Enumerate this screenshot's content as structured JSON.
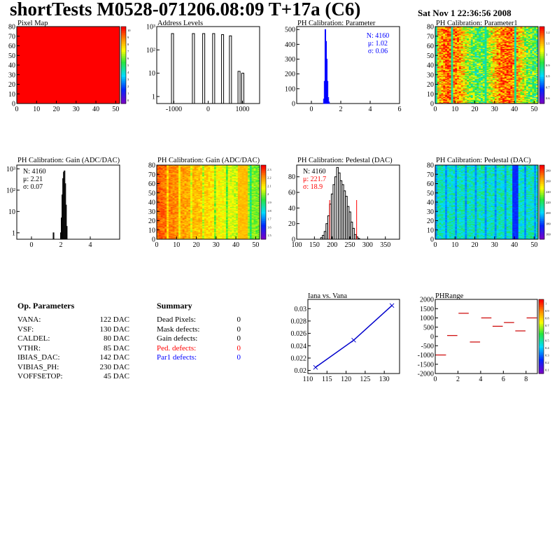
{
  "header": {
    "title": "shortTests M0528-071206.08:09 T+17a (C6)",
    "date": "Sat Nov  1 22:36:56 2008"
  },
  "colors": {
    "text": "#000000",
    "stats_blue": "#0000ff",
    "stats_red": "#ff0000",
    "pixelmap_fill": "#ff0000",
    "line_series": "#0000cc",
    "phrange_segments": "#cc0000"
  },
  "op_parameters": {
    "title": "Op. Parameters",
    "rows": [
      {
        "name": "VANA:",
        "value": "122 DAC"
      },
      {
        "name": "VSF:",
        "value": "130 DAC"
      },
      {
        "name": "CALDEL:",
        "value": "80 DAC"
      },
      {
        "name": "VTHR:",
        "value": "85 DAC"
      },
      {
        "name": "IBIAS_DAC:",
        "value": "142 DAC"
      },
      {
        "name": "VIBIAS_PH:",
        "value": "230 DAC"
      },
      {
        "name": "VOFFSETOP:",
        "value": "45 DAC"
      }
    ]
  },
  "summary": {
    "title": "Summary",
    "rows": [
      {
        "name": "Dead Pixels:",
        "value": "0",
        "color": "#000000"
      },
      {
        "name": "Mask defects:",
        "value": "0",
        "color": "#000000"
      },
      {
        "name": "Gain defects:",
        "value": "0",
        "color": "#000000"
      },
      {
        "name": "Ped. defects:",
        "value": "0",
        "color": "#ff0000"
      },
      {
        "name": "Par1 defects:",
        "value": "0",
        "color": "#0000ff"
      }
    ]
  },
  "chart_data": [
    {
      "id": "pixel-map",
      "type": "heatmap",
      "title": "Pixel Map",
      "xlim": [
        0,
        52
      ],
      "ylim": [
        0,
        80
      ],
      "xticks": [
        "0",
        "10",
        "20",
        "30",
        "40",
        "50"
      ],
      "yticks": [
        "0",
        "10",
        "20",
        "30",
        "40",
        "50",
        "60",
        "70",
        "80"
      ],
      "z_uniform": 10,
      "zlim": [
        0,
        10
      ],
      "palette_labels": [
        "0",
        "1",
        "2",
        "3",
        "4",
        "5",
        "6",
        "7",
        "8",
        "9",
        "10"
      ]
    },
    {
      "id": "address-levels",
      "type": "bar",
      "title": "Address Levels",
      "log_y": true,
      "xlim": [
        -1500,
        1500
      ],
      "ylim": [
        0.5,
        1000
      ],
      "xticks": [
        "-1000",
        "0",
        "1000"
      ],
      "yticks": [
        "1",
        "10",
        "10²",
        "10³"
      ],
      "peaks": [
        {
          "x": -1040,
          "y": 500
        },
        {
          "x": -430,
          "y": 500
        },
        {
          "x": -130,
          "y": 500
        },
        {
          "x": 160,
          "y": 500
        },
        {
          "x": 420,
          "y": 450
        },
        {
          "x": 650,
          "y": 400
        },
        {
          "x": 900,
          "y": 12
        },
        {
          "x": 1010,
          "y": 10
        }
      ]
    },
    {
      "id": "ph-cal-parameter",
      "type": "bar",
      "title": "PH Calibration: Parameter",
      "xlim": [
        -1,
        6
      ],
      "ylim": [
        0,
        520
      ],
      "xticks": [
        "0",
        "2",
        "4",
        "6"
      ],
      "yticks": [
        "0",
        "100",
        "200",
        "300",
        "400",
        "500"
      ],
      "stats": [
        {
          "text": "N: 4160",
          "color": "#0000ff"
        },
        {
          "text": "μ: 1.02",
          "color": "#0000ff"
        },
        {
          "text": "σ: 0.06",
          "color": "#0000ff"
        }
      ],
      "x": [
        0.85,
        0.9,
        0.95,
        1.0,
        1.05,
        1.1,
        1.15,
        1.2
      ],
      "values": [
        30,
        150,
        500,
        420,
        300,
        150,
        40,
        10
      ]
    },
    {
      "id": "ph-cal-parameter1",
      "type": "heatmap",
      "title": "PH Calibration: Parameter1",
      "xlim": [
        0,
        52
      ],
      "ylim": [
        0,
        80
      ],
      "xticks": [
        "0",
        "10",
        "20",
        "30",
        "40",
        "50"
      ],
      "yticks": [
        "0",
        "10",
        "20",
        "30",
        "40",
        "50",
        "60",
        "70",
        "80"
      ],
      "palette_labels": [
        "0.6",
        "0.7",
        "0.8",
        "0.9",
        "1",
        "1.1",
        "1.2"
      ]
    },
    {
      "id": "ph-cal-gain-1d",
      "type": "bar",
      "title": "PH Calibration: Gain (ADC/DAC)",
      "log_y": true,
      "xlim": [
        -1,
        6
      ],
      "ylim": [
        0.5,
        1500
      ],
      "xticks": [
        "0",
        "2",
        "4"
      ],
      "yticks": [
        "1",
        "10",
        "10²",
        "10³"
      ],
      "stats": [
        {
          "text": "N: 4160",
          "color": "#000000"
        },
        {
          "text": "μ: 2.21",
          "color": "#000000"
        },
        {
          "text": "σ: 0.07",
          "color": "#000000"
        }
      ],
      "x": [
        1.5,
        2.0,
        2.05,
        2.1,
        2.15,
        2.2,
        2.25,
        2.3,
        2.35,
        2.4
      ],
      "values": [
        1,
        1,
        5,
        60,
        350,
        700,
        800,
        200,
        20,
        2
      ]
    },
    {
      "id": "ph-cal-gain-map",
      "type": "heatmap",
      "title": "PH Calibration: Gain (ADC/DAC)",
      "xlim": [
        0,
        52
      ],
      "ylim": [
        0,
        80
      ],
      "xticks": [
        "0",
        "10",
        "20",
        "30",
        "40",
        "50"
      ],
      "yticks": [
        "0",
        "10",
        "20",
        "30",
        "40",
        "50",
        "60",
        "70",
        "80"
      ],
      "palette_labels": [
        "1.5",
        "1.6",
        "1.7",
        "1.8",
        "1.9",
        "2",
        "2.1",
        "2.2",
        "2.3"
      ]
    },
    {
      "id": "ph-cal-pedestal-1d",
      "type": "bar",
      "title": "PH Calibration: Pedestal (DAC)",
      "xlim": [
        100,
        390
      ],
      "ylim": [
        0,
        95
      ],
      "xticks": [
        "100",
        "150",
        "200",
        "250",
        "300",
        "350"
      ],
      "yticks": [
        "0",
        "20",
        "40",
        "60",
        "80"
      ],
      "stats": [
        {
          "text": "N: 4160",
          "color": "#000000"
        },
        {
          "text": "μ: 221.7",
          "color": "#ff0000"
        },
        {
          "text": "σ: 18.9",
          "color": "#ff0000"
        }
      ],
      "x": [
        170,
        175,
        180,
        185,
        190,
        195,
        200,
        205,
        210,
        215,
        220,
        225,
        230,
        235,
        240,
        245,
        250,
        255,
        260,
        265,
        270,
        275
      ],
      "values": [
        2,
        5,
        10,
        20,
        30,
        45,
        58,
        70,
        80,
        92,
        85,
        75,
        70,
        62,
        55,
        42,
        35,
        22,
        14,
        6,
        3,
        1
      ],
      "cut_lines": [
        193,
        269
      ]
    },
    {
      "id": "ph-cal-pedestal-map",
      "type": "heatmap",
      "title": "PH Calibration: Pedestal (DAC)",
      "xlim": [
        0,
        52
      ],
      "ylim": [
        0,
        80
      ],
      "xticks": [
        "0",
        "10",
        "20",
        "30",
        "40",
        "50"
      ],
      "yticks": [
        "0",
        "10",
        "20",
        "30",
        "40",
        "50",
        "60",
        "70",
        "80"
      ],
      "palette_labels": [
        "160",
        "180",
        "200",
        "220",
        "240",
        "260",
        "280"
      ]
    },
    {
      "id": "iana-vs-vana",
      "type": "line",
      "title": "Iana vs. Vana",
      "xlim": [
        110,
        134
      ],
      "ylim": [
        0.0195,
        0.0315
      ],
      "xticks": [
        "110",
        "115",
        "120",
        "125",
        "130"
      ],
      "yticks": [
        "0.02",
        "0.022",
        "0.024",
        "0.026",
        "0.028",
        "0.03"
      ],
      "x": [
        112,
        122,
        132
      ],
      "y": [
        0.0205,
        0.0249,
        0.0305
      ]
    },
    {
      "id": "ph-range",
      "type": "scatter",
      "title": "PHRange",
      "xlim": [
        0,
        9
      ],
      "ylim": [
        -2000,
        2000
      ],
      "xticks": [
        "0",
        "2",
        "4",
        "6",
        "8"
      ],
      "yticks": [
        "-2000",
        "-1500",
        "-1000",
        "-500",
        "0",
        "500",
        "1000",
        "1500",
        "2000"
      ],
      "x": [
        0.5,
        1.5,
        2.5,
        3.5,
        4.5,
        5.5,
        6.5,
        7.5,
        8.5
      ],
      "y": [
        -1000,
        50,
        1250,
        -300,
        1000,
        550,
        750,
        300,
        1000
      ],
      "palette_labels": [
        "0.1",
        "0.2",
        "0.3",
        "0.4",
        "0.5",
        "0.6",
        "0.7",
        "0.8",
        "0.9",
        "1"
      ]
    }
  ]
}
